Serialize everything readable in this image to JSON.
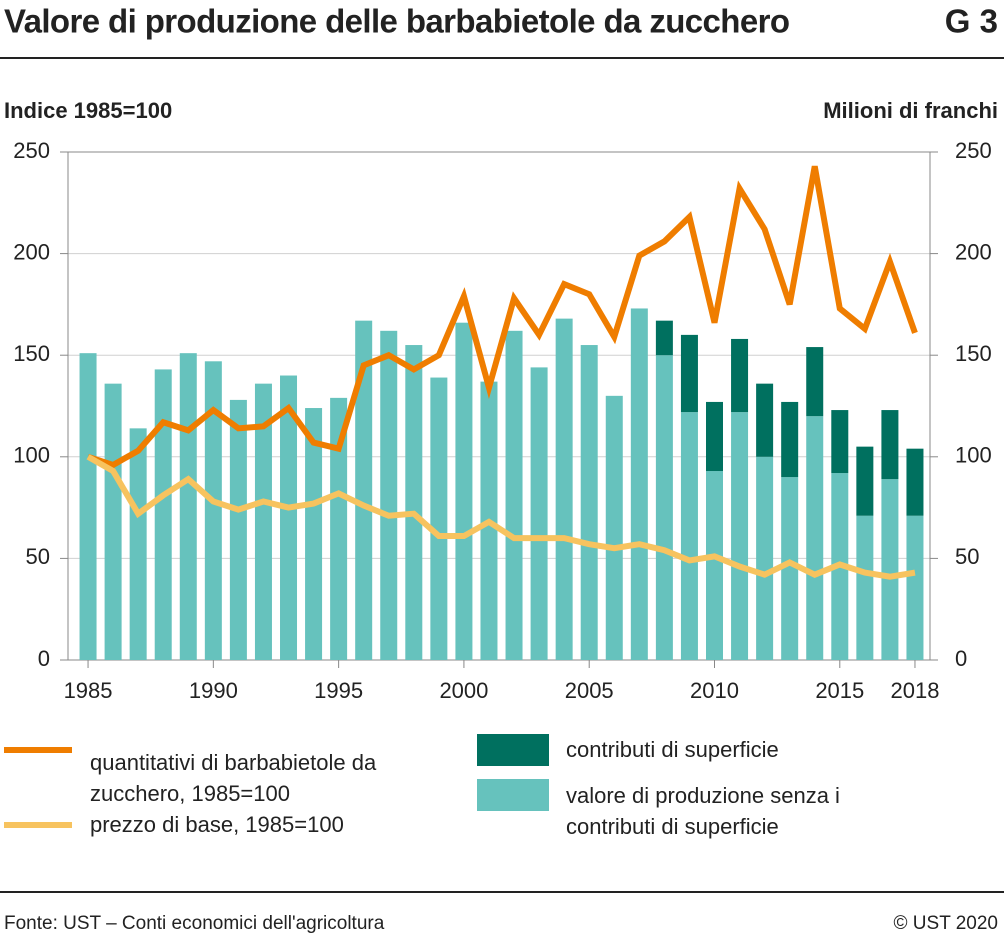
{
  "chart_data": {
    "type": "bar",
    "title": "Valore di produzione delle barbabietole da zucchero",
    "figure_label": "G 3",
    "ylabel": "Indice 1985=100",
    "y2label": "Milioni di franchi",
    "source": "Fonte: UST – Conti economici dell'agricoltura",
    "copyright": "© UST 2020",
    "x": [
      1985,
      1986,
      1987,
      1988,
      1989,
      1990,
      1991,
      1992,
      1993,
      1994,
      1995,
      1996,
      1997,
      1998,
      1999,
      2000,
      2001,
      2002,
      2003,
      2004,
      2005,
      2006,
      2007,
      2008,
      2009,
      2010,
      2011,
      2012,
      2013,
      2014,
      2015,
      2016,
      2017,
      2018
    ],
    "xlim": [
      1984.2,
      2018.6
    ],
    "xticks": [
      1985,
      1990,
      1995,
      2000,
      2005,
      2010,
      2015,
      2018
    ],
    "ylim": [
      0,
      250
    ],
    "yticks": [
      0,
      50,
      100,
      150,
      200,
      250
    ],
    "y2lim": [
      0,
      250
    ],
    "y2ticks": [
      0,
      50,
      100,
      150,
      200,
      250
    ],
    "grid": true,
    "series": [
      {
        "name": "valore di produzione senza i contributi di superficie",
        "type": "bar",
        "axis": "y2",
        "color": "#66c2bd",
        "values": [
          151,
          136,
          114,
          143,
          151,
          147,
          128,
          136,
          140,
          124,
          129,
          167,
          162,
          155,
          139,
          166,
          137,
          162,
          144,
          168,
          155,
          130,
          173,
          150,
          122,
          93,
          122,
          100,
          90,
          120,
          92,
          71,
          89,
          71
        ]
      },
      {
        "name": "contributi di superficie",
        "type": "bar",
        "axis": "y2",
        "color": "#00705f",
        "values": [
          null,
          null,
          null,
          null,
          null,
          null,
          null,
          null,
          null,
          null,
          null,
          null,
          null,
          null,
          null,
          null,
          null,
          null,
          null,
          null,
          null,
          null,
          null,
          17,
          38,
          34,
          36,
          36,
          37,
          34,
          31,
          34,
          34,
          33
        ]
      },
      {
        "name": "quantitativi di barbabietole da zucchero, 1985=100",
        "type": "line",
        "color": "#ef7d00",
        "values": [
          100,
          96,
          103,
          117,
          113,
          123,
          114,
          115,
          124,
          107,
          104,
          145,
          150,
          143,
          150,
          179,
          134,
          178,
          160,
          185,
          180,
          159,
          199,
          206,
          218,
          166,
          232,
          212,
          175,
          243,
          173,
          163,
          196,
          161
        ]
      },
      {
        "name": "prezzo di base, 1985=100",
        "type": "line",
        "color": "#f7c35f",
        "values": [
          100,
          93,
          72,
          81,
          89,
          78,
          74,
          78,
          75,
          77,
          82,
          76,
          71,
          72,
          61,
          61,
          68,
          60,
          60,
          60,
          57,
          55,
          57,
          54,
          49,
          51,
          46,
          42,
          48,
          42,
          47,
          43,
          41,
          43
        ]
      }
    ]
  }
}
